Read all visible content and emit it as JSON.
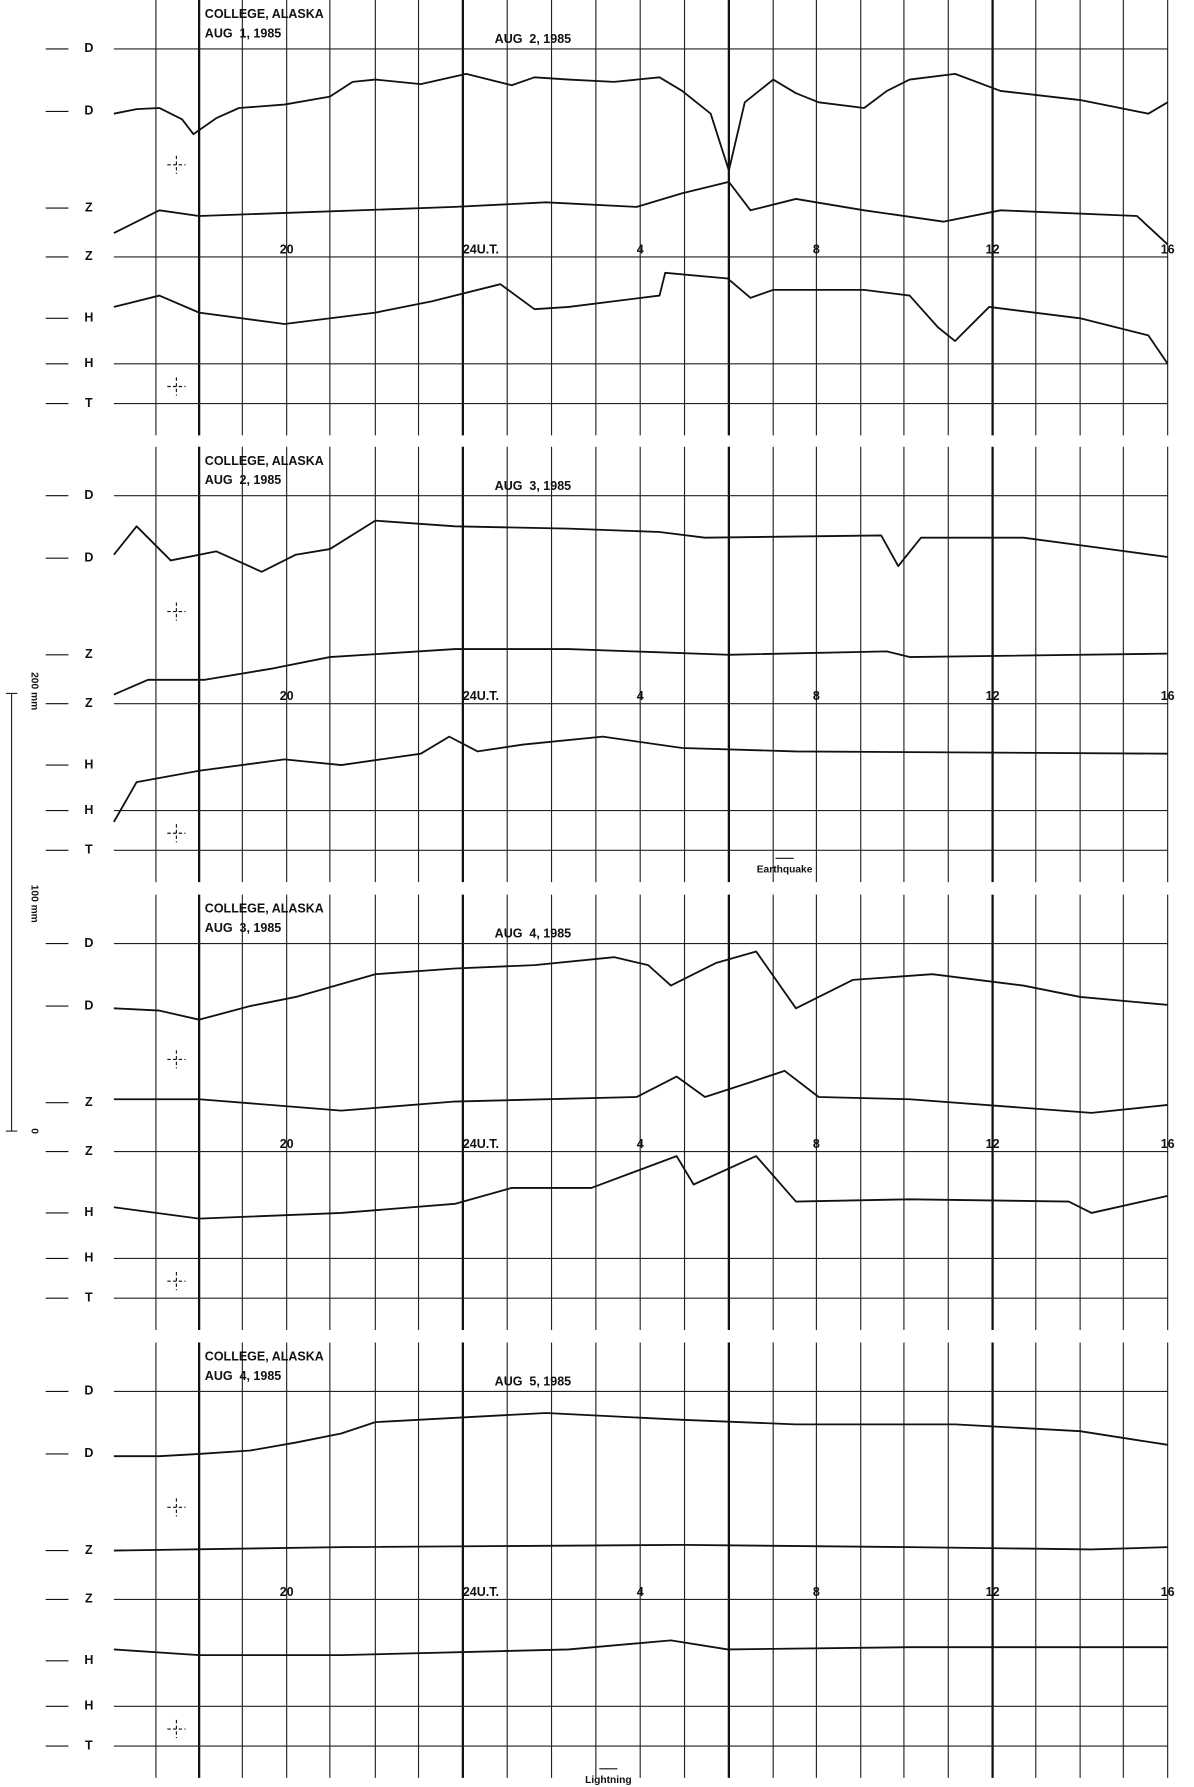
{
  "panels": [
    {
      "station": "COLLEGE, ALASKA",
      "date_left": "AUG  1, 1985",
      "date_right": "AUG  2, 1985",
      "hours": [
        "20",
        "24U.T.",
        "4",
        "8",
        "12",
        "16"
      ],
      "channel_labels": [
        "D",
        "D",
        "Z",
        "Z",
        "H",
        "H",
        "T"
      ]
    },
    {
      "station": "COLLEGE, ALASKA",
      "date_left": "AUG  2, 1985",
      "date_right": "AUG  3, 1985",
      "hours": [
        "20",
        "24U.T.",
        "4",
        "8",
        "12",
        "16"
      ],
      "channel_labels": [
        "D",
        "D",
        "Z",
        "Z",
        "H",
        "H",
        "T"
      ],
      "annotation": "Earthquake"
    },
    {
      "station": "COLLEGE, ALASKA",
      "date_left": "AUG  3, 1985",
      "date_right": "AUG  4, 1985",
      "hours": [
        "20",
        "24U.T.",
        "4",
        "8",
        "12",
        "16"
      ],
      "channel_labels": [
        "D",
        "D",
        "Z",
        "Z",
        "H",
        "H",
        "T"
      ]
    },
    {
      "station": "COLLEGE, ALASKA",
      "date_left": "AUG  4, 1985",
      "date_right": "AUG  5, 1985",
      "hours": [
        "20",
        "24U.T.",
        "4",
        "8",
        "12",
        "16"
      ],
      "channel_labels": [
        "D",
        "D",
        "Z",
        "Z",
        "H",
        "H",
        "T"
      ],
      "annotation": "Lightning"
    }
  ],
  "scale_labels": [
    "200 mm",
    "100 mm",
    "0"
  ]
}
